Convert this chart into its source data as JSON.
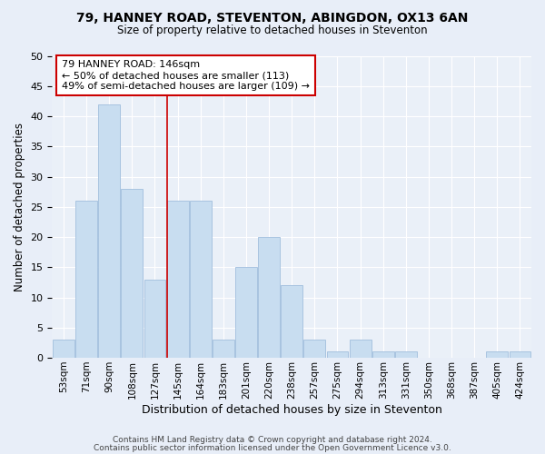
{
  "title_line1": "79, HANNEY ROAD, STEVENTON, ABINGDON, OX13 6AN",
  "title_line2": "Size of property relative to detached houses in Steventon",
  "xlabel": "Distribution of detached houses by size in Steventon",
  "ylabel": "Number of detached properties",
  "categories": [
    "53sqm",
    "71sqm",
    "90sqm",
    "108sqm",
    "127sqm",
    "145sqm",
    "164sqm",
    "183sqm",
    "201sqm",
    "220sqm",
    "238sqm",
    "257sqm",
    "275sqm",
    "294sqm",
    "313sqm",
    "331sqm",
    "350sqm",
    "368sqm",
    "387sqm",
    "405sqm",
    "424sqm"
  ],
  "values": [
    3,
    26,
    42,
    28,
    13,
    26,
    26,
    3,
    15,
    20,
    12,
    3,
    1,
    3,
    1,
    1,
    0,
    0,
    0,
    1,
    1
  ],
  "bar_color": "#c8ddf0",
  "bar_edge_color": "#a0bedd",
  "highlight_index": 5,
  "annotation_text": "79 HANNEY ROAD: 146sqm\n← 50% of detached houses are smaller (113)\n49% of semi-detached houses are larger (109) →",
  "annotation_box_color": "#ffffff",
  "annotation_box_edge": "#cc0000",
  "vline_color": "#cc0000",
  "ylim": [
    0,
    50
  ],
  "yticks": [
    0,
    5,
    10,
    15,
    20,
    25,
    30,
    35,
    40,
    45,
    50
  ],
  "footer_line1": "Contains HM Land Registry data © Crown copyright and database right 2024.",
  "footer_line2": "Contains public sector information licensed under the Open Government Licence v3.0.",
  "bg_color": "#e8eef8",
  "plot_bg_color": "#eaf0f8"
}
